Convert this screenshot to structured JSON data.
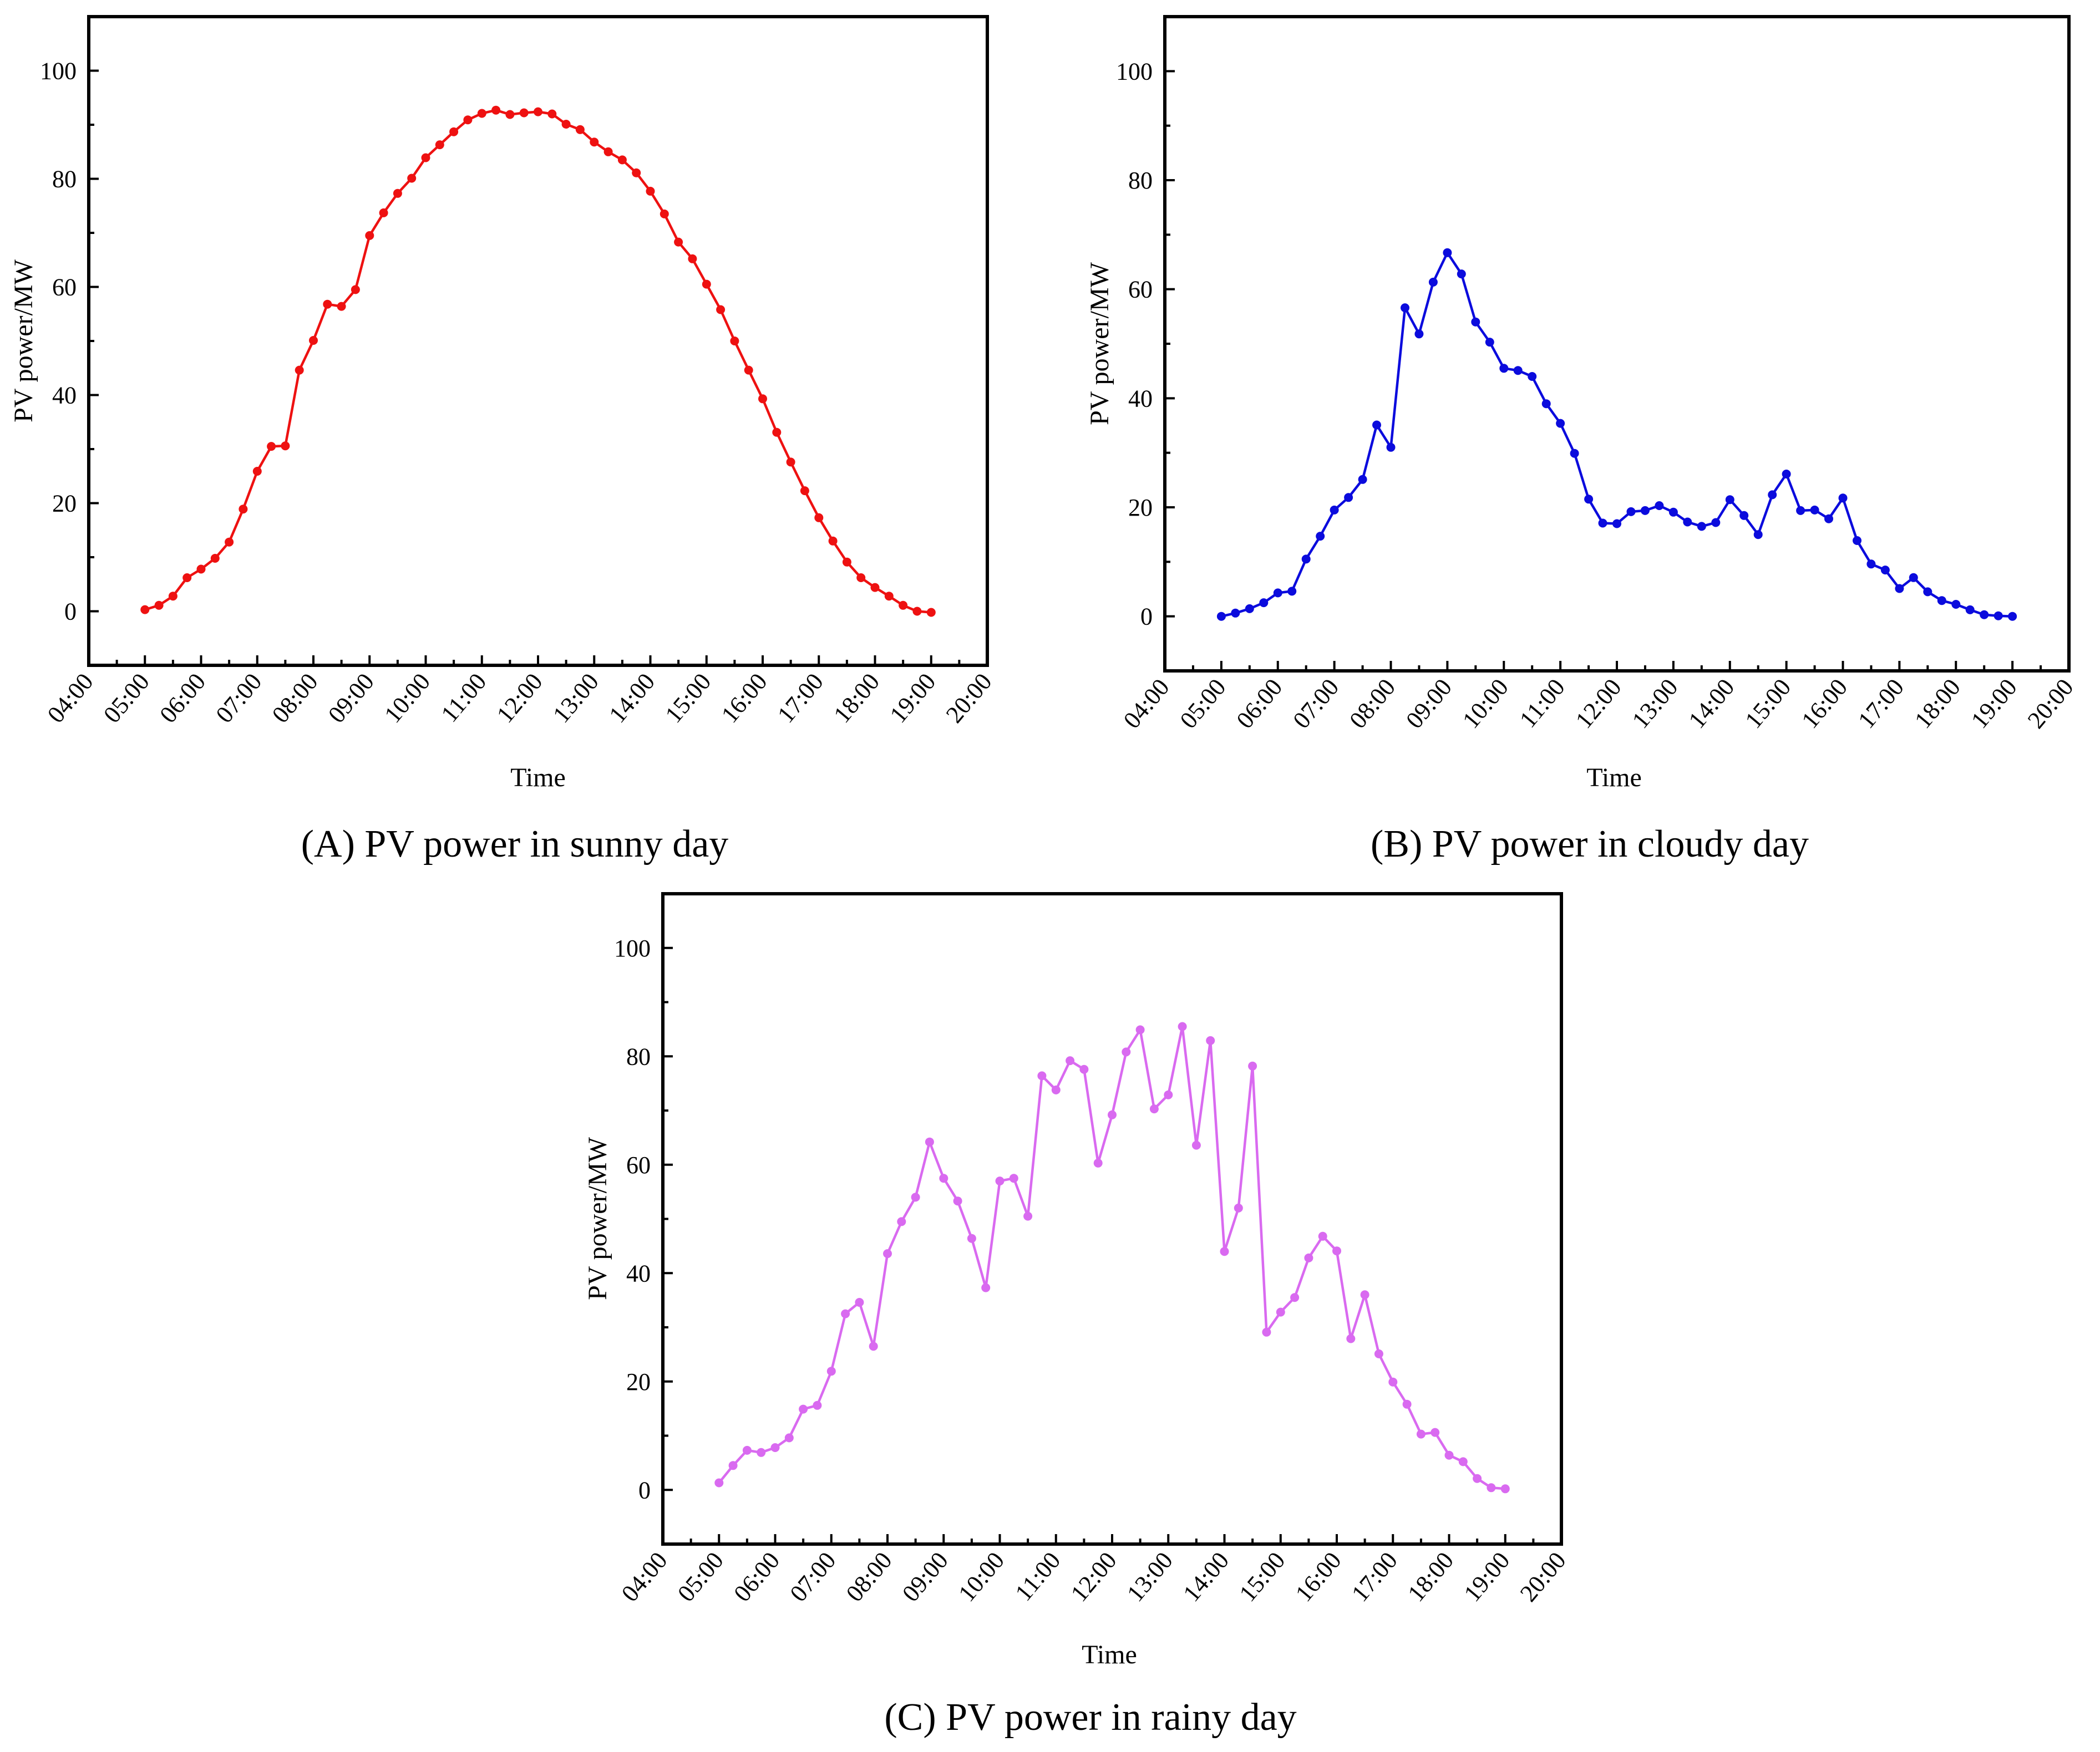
{
  "chart_data": [
    {
      "type": "line",
      "caption": "(A) PV power in sunny day",
      "xlabel": "Time",
      "ylabel": "PV power/MW",
      "x_tick_labels": [
        "04:00",
        "05:00",
        "06:00",
        "07:00",
        "08:00",
        "09:00",
        "10:00",
        "11:00",
        "12:00",
        "13:00",
        "14:00",
        "15:00",
        "16:00",
        "17:00",
        "18:00",
        "19:00",
        "20:00"
      ],
      "x_range": [
        "04:00",
        "20:00"
      ],
      "y_ticks": [
        0,
        20,
        40,
        60,
        80,
        100
      ],
      "ylim": [
        -10,
        110
      ],
      "grid": false,
      "color": "#ee1111",
      "x": [
        "05:00",
        "05:15",
        "05:30",
        "05:45",
        "06:00",
        "06:15",
        "06:30",
        "06:45",
        "07:00",
        "07:15",
        "07:30",
        "07:45",
        "08:00",
        "08:15",
        "08:30",
        "08:45",
        "09:00",
        "09:15",
        "09:30",
        "09:45",
        "10:00",
        "10:15",
        "10:30",
        "10:45",
        "11:00",
        "11:15",
        "11:30",
        "11:45",
        "12:00",
        "12:15",
        "12:30",
        "12:45",
        "13:00",
        "13:15",
        "13:30",
        "13:45",
        "14:00",
        "14:15",
        "14:30",
        "14:45",
        "15:00",
        "15:15",
        "15:30",
        "15:45",
        "16:00",
        "16:15",
        "16:30",
        "16:45",
        "17:00",
        "17:15",
        "17:30",
        "17:45",
        "18:00",
        "18:15",
        "18:30",
        "18:45",
        "19:00"
      ],
      "values": [
        0.3,
        1.1,
        2.8,
        6.2,
        7.8,
        9.8,
        12.8,
        18.9,
        25.9,
        30.5,
        30.6,
        44.6,
        50.1,
        56.8,
        56.4,
        59.5,
        69.5,
        73.7,
        77.3,
        80.1,
        83.9,
        86.3,
        88.7,
        90.9,
        92.1,
        92.7,
        91.9,
        92.2,
        92.4,
        92.0,
        90.1,
        89.1,
        86.8,
        85.0,
        83.5,
        81.1,
        77.7,
        73.5,
        68.3,
        65.2,
        60.5,
        55.8,
        50.0,
        44.6,
        39.3,
        33.1,
        27.6,
        22.3,
        17.3,
        13.0,
        9.1,
        6.2,
        4.4,
        2.8,
        1.1,
        0.0,
        -0.2
      ]
    },
    {
      "type": "line",
      "caption": "(B) PV power in cloudy day",
      "xlabel": "Time",
      "ylabel": "PV power/MW",
      "x_tick_labels": [
        "04:00",
        "05:00",
        "06:00",
        "07:00",
        "08:00",
        "09:00",
        "10:00",
        "11:00",
        "12:00",
        "13:00",
        "14:00",
        "15:00",
        "16:00",
        "17:00",
        "18:00",
        "19:00",
        "20:00"
      ],
      "x_range": [
        "04:00",
        "20:00"
      ],
      "y_ticks": [
        0,
        20,
        40,
        60,
        80,
        100
      ],
      "ylim": [
        -10,
        110
      ],
      "grid": false,
      "color": "#0b0bdd",
      "x": [
        "05:00",
        "05:15",
        "05:30",
        "05:45",
        "06:00",
        "06:15",
        "06:30",
        "06:45",
        "07:00",
        "07:15",
        "07:30",
        "07:45",
        "08:00",
        "08:15",
        "08:30",
        "08:45",
        "09:00",
        "09:15",
        "09:30",
        "09:45",
        "10:00",
        "10:15",
        "10:30",
        "10:45",
        "11:00",
        "11:15",
        "11:30",
        "11:45",
        "12:00",
        "12:15",
        "12:30",
        "12:45",
        "13:00",
        "13:15",
        "13:30",
        "13:45",
        "14:00",
        "14:15",
        "14:30",
        "14:45",
        "15:00",
        "15:15",
        "15:30",
        "15:45",
        "16:00",
        "16:15",
        "16:30",
        "16:45",
        "17:00",
        "17:15",
        "17:30",
        "17:45",
        "18:00",
        "18:15",
        "18:30",
        "18:45",
        "19:00"
      ],
      "values": [
        0.0,
        0.6,
        1.4,
        2.5,
        4.3,
        4.6,
        10.5,
        14.7,
        19.5,
        21.8,
        25.1,
        35.1,
        31.0,
        56.6,
        51.8,
        61.3,
        66.7,
        62.8,
        54.0,
        50.3,
        45.5,
        45.1,
        44.0,
        39.0,
        35.4,
        29.9,
        21.5,
        17.1,
        17.0,
        19.2,
        19.4,
        20.3,
        19.1,
        17.3,
        16.5,
        17.2,
        21.4,
        18.5,
        15.0,
        22.3,
        26.1,
        19.4,
        19.5,
        17.9,
        21.7,
        13.9,
        9.6,
        8.5,
        5.1,
        7.1,
        4.5,
        2.9,
        2.2,
        1.2,
        0.3,
        0.1,
        0.0
      ]
    },
    {
      "type": "line",
      "caption": "(C) PV power in rainy day",
      "xlabel": "Time",
      "ylabel": "PV power/MW",
      "x_tick_labels": [
        "04:00",
        "05:00",
        "06:00",
        "07:00",
        "08:00",
        "09:00",
        "10:00",
        "11:00",
        "12:00",
        "13:00",
        "14:00",
        "15:00",
        "16:00",
        "17:00",
        "18:00",
        "19:00",
        "20:00"
      ],
      "x_range": [
        "04:00",
        "20:00"
      ],
      "y_ticks": [
        0,
        20,
        40,
        60,
        80,
        100
      ],
      "ylim": [
        -10,
        110
      ],
      "grid": false,
      "color": "#d96af0",
      "x": [
        "05:00",
        "05:15",
        "05:30",
        "05:45",
        "06:00",
        "06:15",
        "06:30",
        "06:45",
        "07:00",
        "07:15",
        "07:30",
        "07:45",
        "08:00",
        "08:15",
        "08:30",
        "08:45",
        "09:00",
        "09:15",
        "09:30",
        "09:45",
        "10:00",
        "10:15",
        "10:30",
        "10:45",
        "11:00",
        "11:15",
        "11:30",
        "11:45",
        "12:00",
        "12:15",
        "12:30",
        "12:45",
        "13:00",
        "13:15",
        "13:30",
        "13:45",
        "14:00",
        "14:15",
        "14:30",
        "14:45",
        "15:00",
        "15:15",
        "15:30",
        "15:45",
        "16:00",
        "16:15",
        "16:30",
        "16:45",
        "17:00",
        "17:15",
        "17:30",
        "17:45",
        "18:00",
        "18:15",
        "18:30",
        "18:45",
        "19:00"
      ],
      "values": [
        1.3,
        4.5,
        7.3,
        6.9,
        7.8,
        9.6,
        14.9,
        15.6,
        21.9,
        32.5,
        34.6,
        26.5,
        43.6,
        49.5,
        54.0,
        64.2,
        57.5,
        53.3,
        46.4,
        37.3,
        57.0,
        57.5,
        50.5,
        76.4,
        73.8,
        79.2,
        77.6,
        60.3,
        69.2,
        80.8,
        84.9,
        70.3,
        72.9,
        85.5,
        63.6,
        82.9,
        44.0,
        52.0,
        78.2,
        29.1,
        32.8,
        35.5,
        42.8,
        46.8,
        44.1,
        27.9,
        36.0,
        25.1,
        19.9,
        15.8,
        10.3,
        10.6,
        6.4,
        5.2,
        2.1,
        0.4,
        0.2
      ]
    }
  ]
}
